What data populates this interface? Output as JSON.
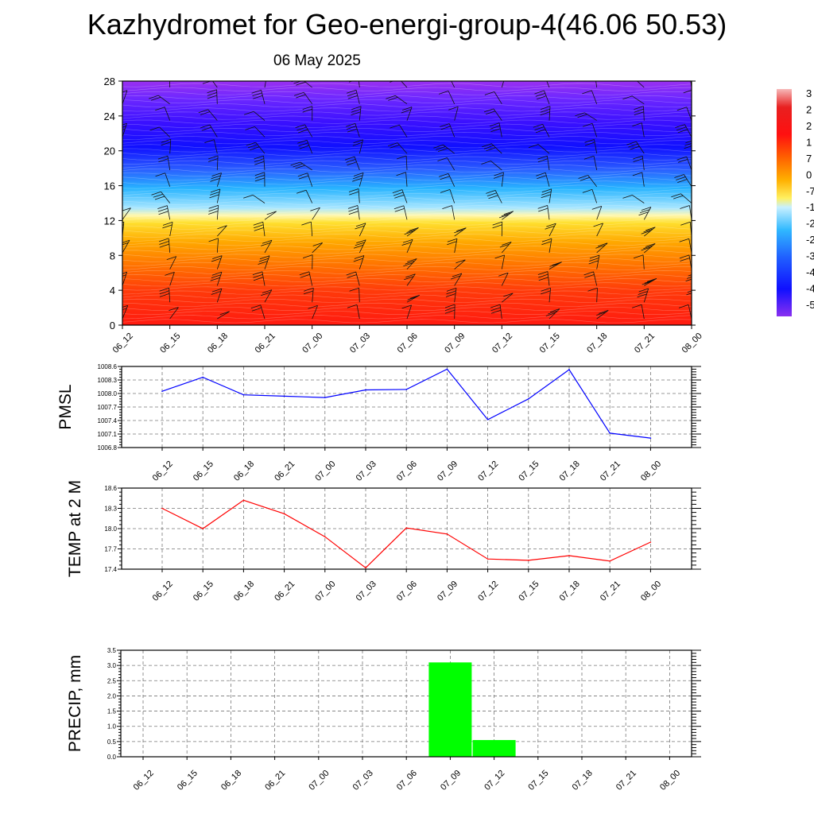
{
  "title": "Kazhydromet for Geo-energi-group-4(46.06 50.53)",
  "subtitle": "06 May 2025",
  "time_labels": [
    "06_12",
    "06_15",
    "06_18",
    "06_21",
    "07_00",
    "07_03",
    "07_06",
    "07_09",
    "07_12",
    "07_15",
    "07_18",
    "07_21",
    "08_00"
  ],
  "colorbar_labels": [
    "3",
    "2",
    "2",
    "1",
    "7",
    "0",
    "-7",
    "-1",
    "-2",
    "-2",
    "-3",
    "-4",
    "-4",
    "-5"
  ],
  "chart_data": [
    {
      "type": "heatmap",
      "title": "",
      "xlabel": "",
      "ylabel": "",
      "ylim": [
        0,
        28
      ],
      "y_ticks": [
        0,
        4,
        8,
        12,
        16,
        20,
        24,
        28
      ],
      "x": [
        "06_12",
        "06_15",
        "06_18",
        "06_21",
        "07_00",
        "07_03",
        "07_06",
        "07_09",
        "07_12",
        "07_15",
        "07_18",
        "07_21",
        "08_00"
      ],
      "overlay": "wind barbs"
    },
    {
      "type": "line",
      "ylabel": "PMSL",
      "ylim": [
        1006.8,
        1008.6
      ],
      "y_ticks": [
        "1006.8",
        "1007.1",
        "1007.4",
        "1007.7",
        "1008.0",
        "1008.3",
        "1008.6"
      ],
      "x": [
        "06_12",
        "06_15",
        "06_18",
        "06_21",
        "07_00",
        "07_03",
        "07_06",
        "07_09",
        "07_12",
        "07_15",
        "07_18",
        "07_21",
        "08_00"
      ],
      "series": [
        {
          "values": [
            1008.05,
            1008.36,
            1007.97,
            1007.94,
            1007.91,
            1008.08,
            1008.09,
            1008.54,
            1007.42,
            1007.88,
            1008.53,
            1007.12,
            1007.01
          ],
          "color": "#0000ff"
        }
      ],
      "grid": true
    },
    {
      "type": "line",
      "ylabel": "TEMP at 2 M",
      "ylim": [
        17.4,
        18.6
      ],
      "y_ticks": [
        "17.4",
        "17.7",
        "18.0",
        "18.3",
        "18.6"
      ],
      "x": [
        "06_12",
        "06_15",
        "06_18",
        "06_21",
        "07_00",
        "07_03",
        "07_06",
        "07_09",
        "07_12",
        "07_15",
        "07_18",
        "07_21",
        "08_00"
      ],
      "series": [
        {
          "values": [
            18.3,
            18.0,
            18.42,
            18.22,
            17.88,
            17.42,
            18.01,
            17.92,
            17.55,
            17.53,
            17.6,
            17.52,
            17.8
          ],
          "color": "#ff0000"
        }
      ],
      "grid": true
    },
    {
      "type": "bar",
      "ylabel": "PRECIP, mm",
      "ylim": [
        0,
        3.5
      ],
      "y_ticks": [
        "0.0",
        "0.5",
        "1.0",
        "1.5",
        "2.0",
        "2.5",
        "3.0",
        "3.5"
      ],
      "x": [
        "06_12",
        "06_15",
        "06_18",
        "06_21",
        "07_00",
        "07_03",
        "07_06",
        "07_09",
        "07_12",
        "07_15",
        "07_18",
        "07_21",
        "08_00"
      ],
      "values": [
        0,
        0,
        0,
        0,
        0,
        0,
        0,
        3.1,
        0.55,
        0,
        0,
        0,
        0
      ],
      "color": "#00ff00",
      "grid": true
    }
  ]
}
